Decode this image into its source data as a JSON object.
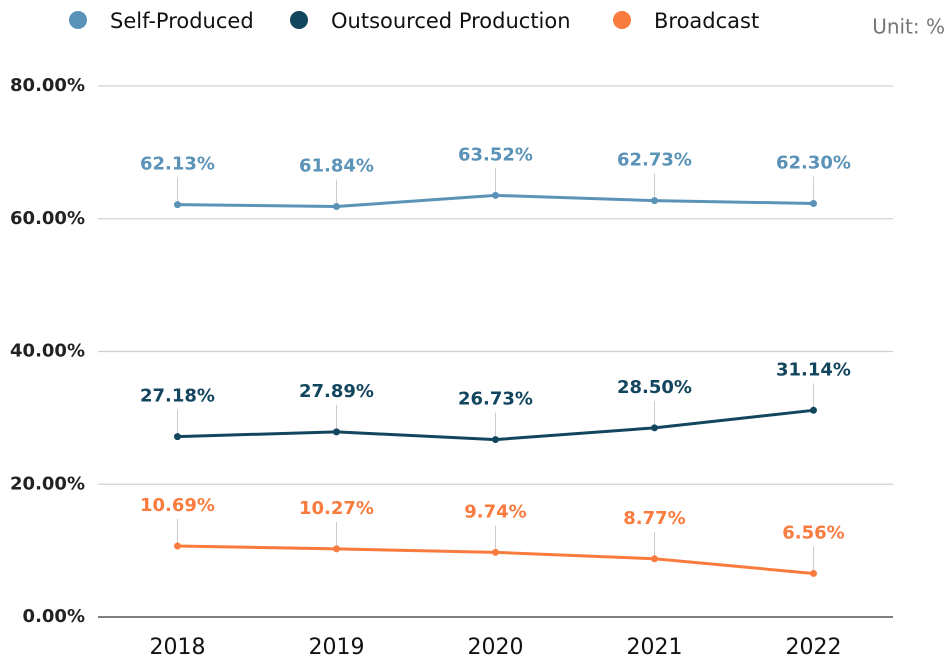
{
  "chart_data": {
    "type": "line",
    "unit": "Unit: %",
    "categories": [
      "2018",
      "2019",
      "2020",
      "2021",
      "2022"
    ],
    "series": [
      {
        "name": "Self-Produced",
        "color": "#5b93b8",
        "values": [
          62.13,
          61.84,
          63.52,
          62.73,
          62.3
        ],
        "value_labels": [
          "62.13%",
          "61.84%",
          "63.52%",
          "62.73%",
          "62.30%"
        ]
      },
      {
        "name": "Outsourced Production",
        "color": "#12455e",
        "values": [
          27.18,
          27.89,
          26.73,
          28.5,
          31.14
        ],
        "value_labels": [
          "27.18%",
          "27.89%",
          "26.73%",
          "28.50%",
          "31.14%"
        ]
      },
      {
        "name": "Broadcast",
        "color": "#f97b3e",
        "values": [
          10.69,
          10.27,
          9.74,
          8.77,
          6.56
        ],
        "value_labels": [
          "10.69%",
          "10.27%",
          "9.74%",
          "8.77%",
          "6.56%"
        ]
      }
    ],
    "ylim": [
      0,
      80
    ],
    "yticks": [
      {
        "value": 0,
        "label": "0.00%"
      },
      {
        "value": 20,
        "label": "20.00%"
      },
      {
        "value": 40,
        "label": "40.00%"
      },
      {
        "value": 60,
        "label": "60.00%"
      },
      {
        "value": 80,
        "label": "80.00%"
      }
    ],
    "grid": true,
    "legend": "top"
  }
}
